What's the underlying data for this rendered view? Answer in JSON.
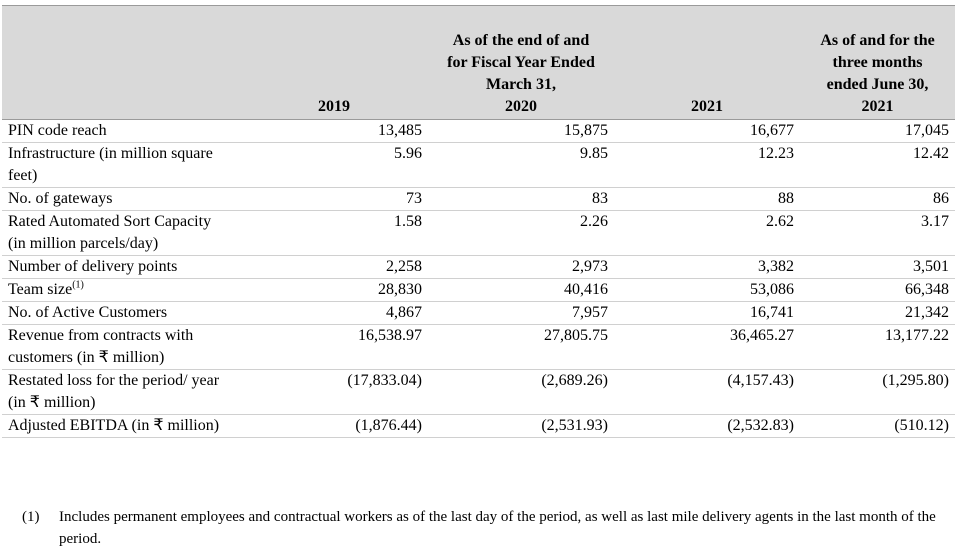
{
  "table": {
    "header": {
      "years": [
        "2019",
        "2020",
        "2021"
      ],
      "group": "As of the end of and for Fiscal Year Ended March 31,",
      "interim": "As of and for the three months ended June 30, 2021"
    },
    "rows": [
      {
        "label": "PIN code reach",
        "values": [
          "13,485",
          "15,875",
          "16,677",
          "17,045"
        ]
      },
      {
        "label": "Infrastructure (in million square feet)",
        "values": [
          "5.96",
          "9.85",
          "12.23",
          "12.42"
        ]
      },
      {
        "label": "No. of gateways",
        "values": [
          "73",
          "83",
          "88",
          "86"
        ]
      },
      {
        "label": "Rated Automated Sort Capacity (in million parcels/day)",
        "values": [
          "1.58",
          "2.26",
          "2.62",
          "3.17"
        ]
      },
      {
        "label": "Number of delivery points",
        "values": [
          "2,258",
          "2,973",
          "3,382",
          "3,501"
        ]
      },
      {
        "label": "Team size",
        "note": "(1)",
        "values": [
          "28,830",
          "40,416",
          "53,086",
          "66,348"
        ]
      },
      {
        "label": "No. of Active Customers",
        "values": [
          "4,867",
          "7,957",
          "16,741",
          "21,342"
        ]
      },
      {
        "label": "Revenue from contracts with customers (in ₹ million)",
        "values": [
          "16,538.97",
          "27,805.75",
          "36,465.27",
          "13,177.22"
        ]
      },
      {
        "label": "Restated loss for the period/ year (in ₹ million)",
        "values": [
          "(17,833.04)",
          "(2,689.26)",
          "(4,157.43)",
          "(1,295.80)"
        ]
      },
      {
        "label": "Adjusted EBITDA (in ₹ million)",
        "values": [
          "(1,876.44)",
          "(2,531.93)",
          "(2,532.83)",
          "(510.12)"
        ]
      }
    ],
    "footnote": {
      "marker": "(1)",
      "text": "Includes permanent employees and contractual workers as of the last day of the period, as well as last mile delivery agents in the last month of the period."
    }
  }
}
